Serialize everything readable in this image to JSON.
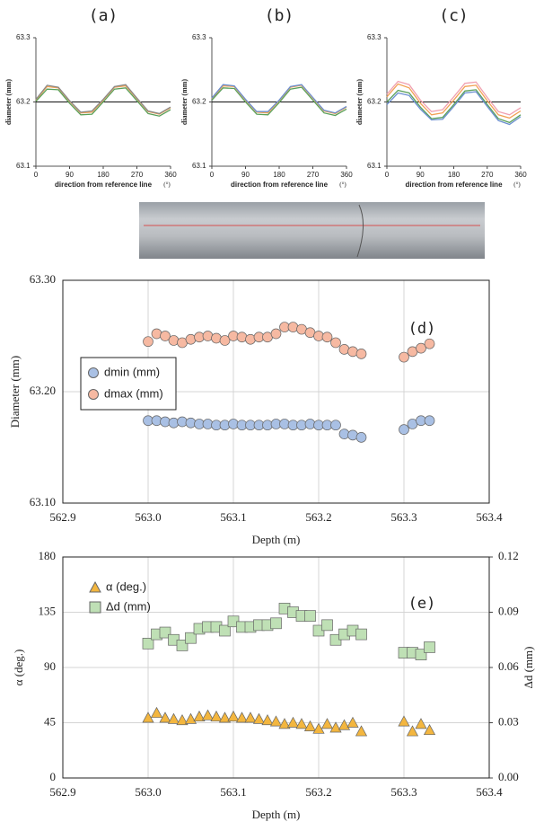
{
  "chart_data": [
    {
      "type": "line",
      "title": "(a)",
      "y_label": "diameter (mm)",
      "x_label": "direction from reference line",
      "x_unit": "(°)",
      "xlim": [
        0,
        360
      ],
      "xticks": [
        0,
        90,
        180,
        270,
        360
      ],
      "ylim": [
        63.1,
        63.3
      ],
      "yticks": [
        63.1,
        63.2,
        63.3
      ],
      "reference_line": 63.2,
      "x": [
        0,
        30,
        60,
        90,
        120,
        150,
        180,
        210,
        240,
        270,
        300,
        330,
        360
      ],
      "series": [
        {
          "color": "#f2a154",
          "values": [
            63.203,
            63.224,
            63.222,
            63.201,
            63.183,
            63.184,
            63.203,
            63.223,
            63.225,
            63.205,
            63.185,
            63.181,
            63.191
          ]
        },
        {
          "color": "#5aa05a",
          "values": [
            63.201,
            63.22,
            63.219,
            63.198,
            63.18,
            63.181,
            63.2,
            63.22,
            63.222,
            63.202,
            63.182,
            63.178,
            63.188
          ]
        },
        {
          "color": "#8a8a8a",
          "values": [
            63.204,
            63.226,
            63.223,
            63.202,
            63.184,
            63.186,
            63.204,
            63.224,
            63.227,
            63.206,
            63.186,
            63.182,
            63.192
          ]
        }
      ]
    },
    {
      "type": "line",
      "title": "(b)",
      "y_label": "diameter (mm)",
      "x_label": "direction from reference line",
      "x_unit": "(°)",
      "xlim": [
        0,
        360
      ],
      "xticks": [
        0,
        90,
        180,
        270,
        360
      ],
      "ylim": [
        63.1,
        63.3
      ],
      "yticks": [
        63.1,
        63.2,
        63.3
      ],
      "reference_line": 63.2,
      "x": [
        0,
        30,
        60,
        90,
        120,
        150,
        180,
        210,
        240,
        270,
        300,
        330,
        360
      ],
      "series": [
        {
          "color": "#f2a154",
          "values": [
            63.205,
            63.225,
            63.224,
            63.203,
            63.184,
            63.183,
            63.202,
            63.223,
            63.226,
            63.206,
            63.186,
            63.182,
            63.192
          ]
        },
        {
          "color": "#5aa05a",
          "values": [
            63.203,
            63.222,
            63.221,
            63.2,
            63.181,
            63.18,
            63.199,
            63.22,
            63.223,
            63.203,
            63.183,
            63.179,
            63.189
          ]
        },
        {
          "color": "#6b8fd0",
          "values": [
            63.206,
            63.227,
            63.225,
            63.204,
            63.185,
            63.185,
            63.203,
            63.224,
            63.227,
            63.207,
            63.187,
            63.183,
            63.193
          ]
        }
      ]
    },
    {
      "type": "line",
      "title": "(c)",
      "y_label": "diameter (mm)",
      "x_label": "direction from reference line",
      "x_unit": "(°)",
      "xlim": [
        0,
        360
      ],
      "xticks": [
        0,
        90,
        180,
        270,
        360
      ],
      "ylim": [
        63.1,
        63.3
      ],
      "yticks": [
        63.1,
        63.2,
        63.3
      ],
      "reference_line": 63.2,
      "x": [
        0,
        30,
        60,
        90,
        120,
        150,
        180,
        210,
        240,
        270,
        300,
        330,
        360
      ],
      "series": [
        {
          "color": "#f2a154",
          "values": [
            63.208,
            63.228,
            63.222,
            63.198,
            63.18,
            63.183,
            63.203,
            63.224,
            63.226,
            63.202,
            63.18,
            63.175,
            63.186
          ]
        },
        {
          "color": "#5aa05a",
          "values": [
            63.2,
            63.218,
            63.214,
            63.192,
            63.174,
            63.176,
            63.196,
            63.217,
            63.219,
            63.196,
            63.174,
            63.168,
            63.18
          ]
        },
        {
          "color": "#6b8fd0",
          "values": [
            63.196,
            63.214,
            63.21,
            63.189,
            63.172,
            63.173,
            63.193,
            63.214,
            63.216,
            63.193,
            63.171,
            63.165,
            63.177
          ]
        },
        {
          "color": "#f0a0b0",
          "values": [
            63.212,
            63.232,
            63.227,
            63.203,
            63.185,
            63.188,
            63.208,
            63.229,
            63.231,
            63.207,
            63.185,
            63.18,
            63.191
          ]
        }
      ]
    },
    {
      "type": "scatter",
      "title": "(d)",
      "x_label": "Depth (m)",
      "y_label": "Diameter (mm)",
      "xlim": [
        562.9,
        563.4
      ],
      "xticks": [
        562.9,
        {
          "value": 563,
          "label": "563.0"
        },
        563.1,
        563.2,
        563.3,
        563.4
      ],
      "ylim": [
        63.1,
        63.3
      ],
      "yticks": [
        {
          "value": 63.1,
          "label": "63.10"
        },
        {
          "value": 63.2,
          "label": "63.20"
        },
        {
          "value": 63.3,
          "label": "63.30"
        }
      ],
      "grid": true,
      "legend": "left",
      "x": [
        563,
        563.01,
        563.02,
        563.03,
        563.04,
        563.05,
        563.06,
        563.07,
        563.08,
        563.09,
        563.1,
        563.11,
        563.12,
        563.13,
        563.14,
        563.15,
        563.16,
        563.17,
        563.18,
        563.19,
        563.2,
        563.21,
        563.22,
        563.23,
        563.24,
        563.25,
        563.3,
        563.31,
        563.32,
        563.33
      ],
      "series": [
        {
          "name": "dmin (mm)",
          "color": "#a9c0e4",
          "marker": "circle",
          "values": [
            63.174,
            63.174,
            63.173,
            63.172,
            63.173,
            63.172,
            63.171,
            63.171,
            63.17,
            63.17,
            63.171,
            63.17,
            63.17,
            63.17,
            63.17,
            63.171,
            63.171,
            63.17,
            63.17,
            63.171,
            63.17,
            63.17,
            63.17,
            63.162,
            63.161,
            63.159,
            63.166,
            63.171,
            63.174,
            63.174
          ]
        },
        {
          "name": "dmax (mm)",
          "color": "#f6b9a2",
          "marker": "circle",
          "values": [
            63.245,
            63.252,
            63.25,
            63.246,
            63.244,
            63.247,
            63.249,
            63.25,
            63.248,
            63.246,
            63.25,
            63.249,
            63.247,
            63.249,
            63.249,
            63.252,
            63.258,
            63.258,
            63.256,
            63.253,
            63.25,
            63.249,
            63.244,
            63.238,
            63.236,
            63.234,
            63.231,
            63.236,
            63.239,
            63.243
          ]
        }
      ]
    },
    {
      "type": "scatter",
      "title": "(e)",
      "x_label": "Depth (m)",
      "y_label": "α (deg.)",
      "y2_label": "Δd (mm)",
      "xlim": [
        562.9,
        563.4
      ],
      "xticks": [
        562.9,
        {
          "value": 563,
          "label": "563.0"
        },
        563.1,
        563.2,
        563.3,
        563.4
      ],
      "ylim": [
        0,
        180
      ],
      "yticks": [
        0,
        45,
        90,
        135,
        180
      ],
      "y2lim": [
        0,
        0.12
      ],
      "y2ticks": [
        {
          "value": 0,
          "label": "0.00"
        },
        0.03,
        0.06,
        0.09,
        0.12
      ],
      "grid": true,
      "legend": "upper-left",
      "x": [
        563,
        563.01,
        563.02,
        563.03,
        563.04,
        563.05,
        563.06,
        563.07,
        563.08,
        563.09,
        563.1,
        563.11,
        563.12,
        563.13,
        563.14,
        563.15,
        563.16,
        563.17,
        563.18,
        563.19,
        563.2,
        563.21,
        563.22,
        563.23,
        563.24,
        563.25,
        563.3,
        563.31,
        563.32,
        563.33
      ],
      "series": [
        {
          "name": "α (deg.)",
          "color": "#f3b63f",
          "marker": "triangle",
          "values": [
            49,
            53,
            49,
            48,
            47,
            48,
            50,
            51,
            50,
            49,
            50,
            49,
            49,
            48,
            47,
            46,
            44,
            45,
            44,
            42,
            40,
            44,
            41,
            43,
            45,
            38,
            46,
            38,
            44,
            39
          ]
        },
        {
          "name": "Δd (mm)",
          "color": "#bfe0b5",
          "marker": "square",
          "axis": "y2",
          "values": [
            0.073,
            0.078,
            0.079,
            0.075,
            0.072,
            0.076,
            0.081,
            0.082,
            0.082,
            0.08,
            0.085,
            0.082,
            0.082,
            0.083,
            0.083,
            0.084,
            0.092,
            0.09,
            0.088,
            0.088,
            0.08,
            0.083,
            0.075,
            0.078,
            0.08,
            0.078,
            0.068,
            0.068,
            0.067,
            0.071
          ]
        }
      ]
    }
  ]
}
